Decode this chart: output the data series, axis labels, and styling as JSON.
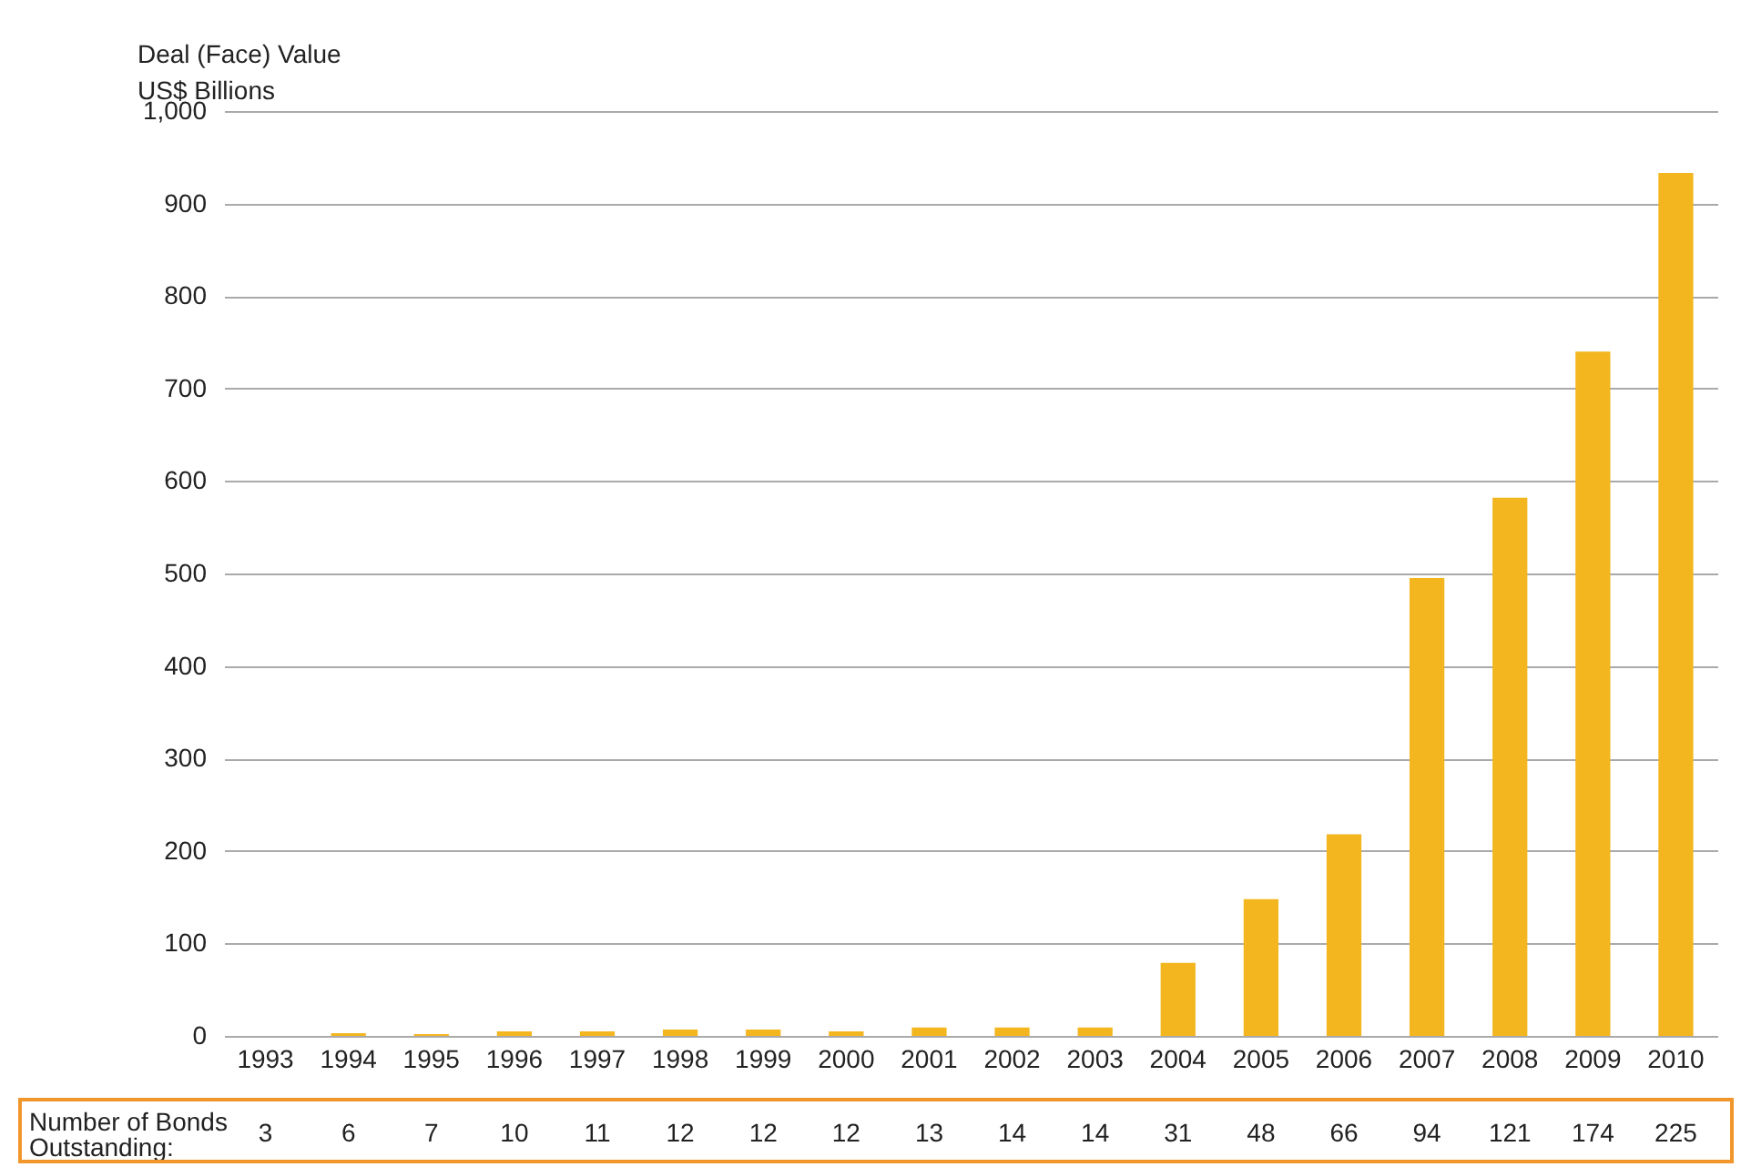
{
  "chart_data": {
    "type": "bar",
    "ylabel": "Deal (Face) Value\nUS$ Billions",
    "categories": [
      "1993",
      "1994",
      "1995",
      "1996",
      "1997",
      "1998",
      "1999",
      "2000",
      "2001",
      "2002",
      "2003",
      "2004",
      "2005",
      "2006",
      "2007",
      "2008",
      "2009",
      "2010"
    ],
    "values": [
      0,
      3,
      2,
      5,
      5,
      7,
      7,
      5,
      9,
      9,
      9,
      79,
      148,
      218,
      495,
      582,
      740,
      933
    ],
    "color": "#f3b61f",
    "ylim": [
      0,
      1000
    ],
    "yticks": [
      0,
      100,
      200,
      300,
      400,
      500,
      600,
      700,
      800,
      900,
      {
        "value": 1000,
        "label": "1,000"
      }
    ],
    "grid": "y",
    "annotations": [
      "Number of Bonds\nOutstanding:",
      "3",
      "6",
      "7",
      "10",
      "11",
      "12",
      "12",
      "12",
      "13",
      "14",
      "14",
      "31",
      "48",
      "66",
      "94",
      "121",
      "174",
      "225"
    ]
  }
}
